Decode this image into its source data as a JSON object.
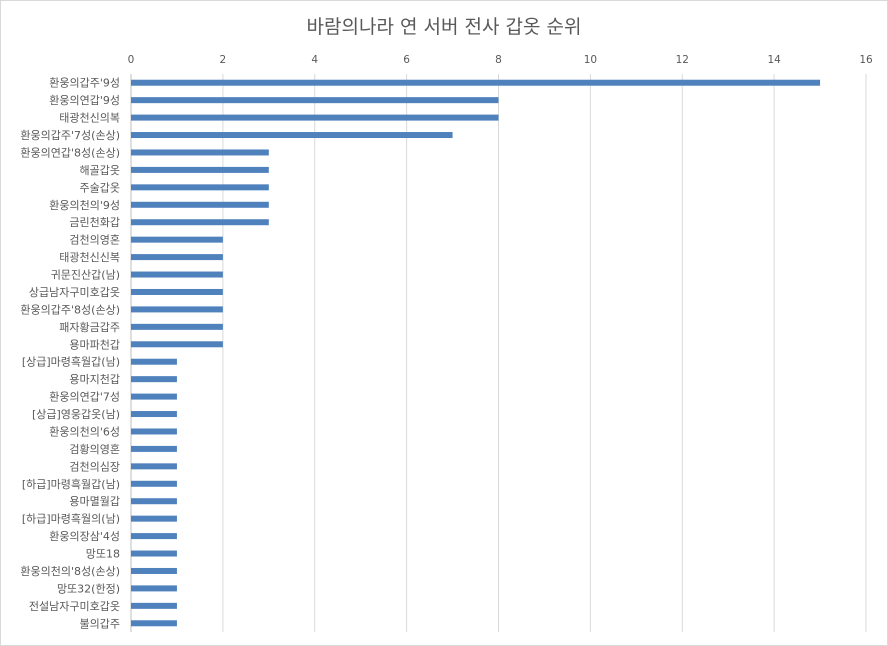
{
  "chart_data": {
    "type": "bar",
    "orientation": "horizontal",
    "title": "바람의나라 연 서버 전사 갑옷 순위",
    "xlim": [
      0,
      16
    ],
    "x_ticks": [
      0,
      2,
      4,
      6,
      8,
      10,
      12,
      14,
      16
    ],
    "x_axis_position": "top",
    "grid": true,
    "bar_color": "#4f81bd",
    "categories": [
      "환웅의갑주'9성",
      "환웅의연갑'9성",
      "태광천신의복",
      "환웅의갑주'7성(손상)",
      "환웅의연갑'8성(손상)",
      "해골갑옷",
      "주술갑옷",
      "환웅의천의'9성",
      "금린천화갑",
      "검천의영혼",
      "태광천신신복",
      "귀문진산갑(남)",
      "상급남자구미호갑옷",
      "환웅의갑주'8성(손상)",
      "패자황금갑주",
      "용마파천갑",
      "[상급]마령흑월갑(남)",
      "용마지천갑",
      "환웅의연갑'7성",
      "[상급]영웅갑옷(남)",
      "환웅의천의'6성",
      "검황의영혼",
      "검천의심장",
      "[하급]마령흑월갑(남)",
      "용마멸월갑",
      "[하급]마령흑월의(남)",
      "환웅의장삼'4성",
      "망또18",
      "환웅의천의'8성(손상)",
      "망또32(한정)",
      "전설남자구미호갑옷",
      "불의갑주"
    ],
    "values": [
      15,
      8,
      8,
      7,
      3,
      3,
      3,
      3,
      3,
      2,
      2,
      2,
      2,
      2,
      2,
      2,
      1,
      1,
      1,
      1,
      1,
      1,
      1,
      1,
      1,
      1,
      1,
      1,
      1,
      1,
      1,
      1
    ]
  }
}
